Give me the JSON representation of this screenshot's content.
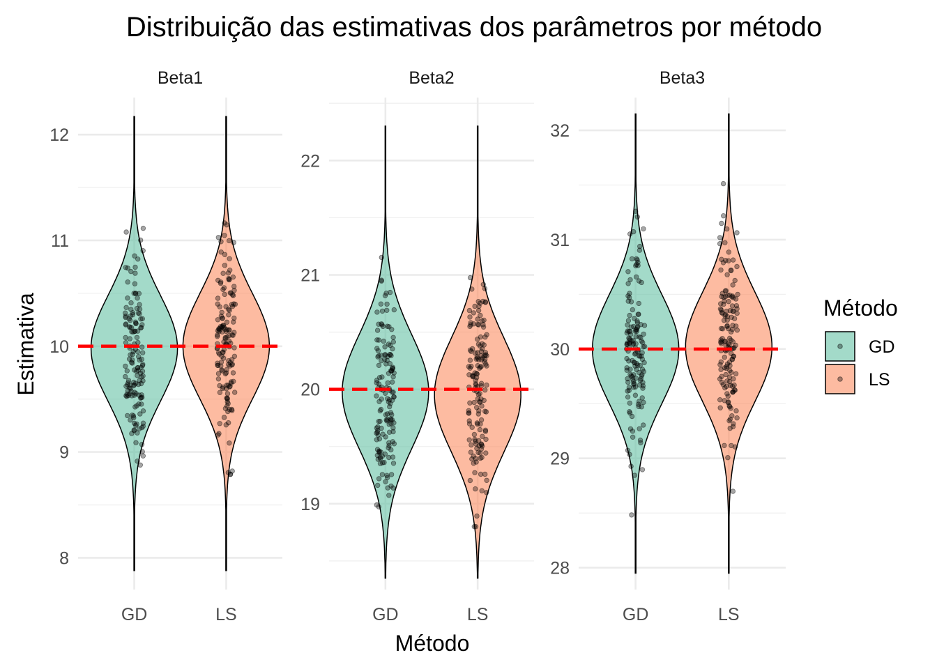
{
  "chart_data": {
    "type": "violin",
    "title": "Distribuição das estimativas dos parâmetros por método",
    "xlabel": "Método",
    "ylabel": "Estimativa",
    "categories": [
      "GD",
      "LS"
    ],
    "legend": {
      "title": "Método",
      "placement": "right",
      "entries": [
        {
          "name": "GD",
          "color": "#66c2a5"
        },
        {
          "name": "LS",
          "color": "#fc8d62"
        }
      ]
    },
    "reference_line": {
      "style": "dashed",
      "color": "#ff0000"
    },
    "panels": [
      {
        "name": "Beta1",
        "true_value": 10,
        "ylim": [
          7.7,
          12.35
        ],
        "yticks": [
          8,
          9,
          10,
          11,
          12
        ],
        "series": [
          {
            "name": "GD",
            "range": [
              7.88,
              12.17
            ],
            "median": 9.98,
            "sd": 0.5,
            "n": 150,
            "seed": 11
          },
          {
            "name": "LS",
            "range": [
              7.88,
              12.17
            ],
            "median": 10.0,
            "sd": 0.5,
            "n": 150,
            "seed": 23
          }
        ]
      },
      {
        "name": "Beta2",
        "true_value": 20,
        "ylim": [
          18.25,
          22.55
        ],
        "yticks": [
          19,
          20,
          21,
          22
        ],
        "series": [
          {
            "name": "GD",
            "range": [
              18.35,
              22.3
            ],
            "median": 19.98,
            "sd": 0.5,
            "n": 150,
            "seed": 37
          },
          {
            "name": "LS",
            "range": [
              18.35,
              22.3
            ],
            "median": 19.95,
            "sd": 0.5,
            "n": 150,
            "seed": 51
          }
        ]
      },
      {
        "name": "Beta3",
        "true_value": 30,
        "ylim": [
          27.8,
          32.3
        ],
        "yticks": [
          28,
          29,
          30,
          31,
          32
        ],
        "series": [
          {
            "name": "GD",
            "range": [
              27.95,
              32.15
            ],
            "median": 30.0,
            "sd": 0.5,
            "n": 150,
            "seed": 67
          },
          {
            "name": "LS",
            "range": [
              27.95,
              32.15
            ],
            "median": 30.02,
            "sd": 0.5,
            "n": 150,
            "seed": 83
          }
        ]
      }
    ]
  }
}
